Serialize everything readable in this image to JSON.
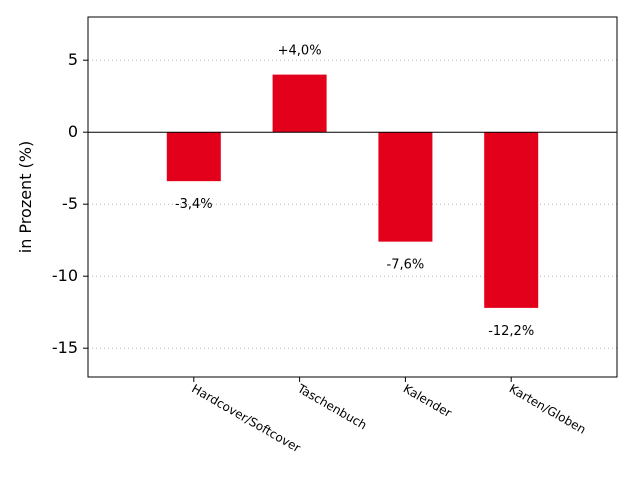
{
  "chart_data": {
    "type": "bar",
    "categories": [
      "Hardcover/Softcover",
      "Taschenbuch",
      "Kalender",
      "Karten/Globen"
    ],
    "values": [
      -3.4,
      4.0,
      -7.6,
      -12.2
    ],
    "data_labels": [
      "-3,4%",
      "+4,0%",
      "-7,6%",
      "-12,2%"
    ],
    "ylabel": "in Prozent (%)",
    "ylim": [
      -17,
      8
    ],
    "yticks": [
      5,
      0,
      -5,
      -10,
      -15
    ],
    "ytick_labels": [
      "5",
      "0",
      "-5",
      "-10",
      "-15"
    ],
    "grid": "horizontal dotted",
    "bar_color": "#e2001a",
    "category_label_rotation": "rotated clockwise",
    "legend": "none"
  }
}
